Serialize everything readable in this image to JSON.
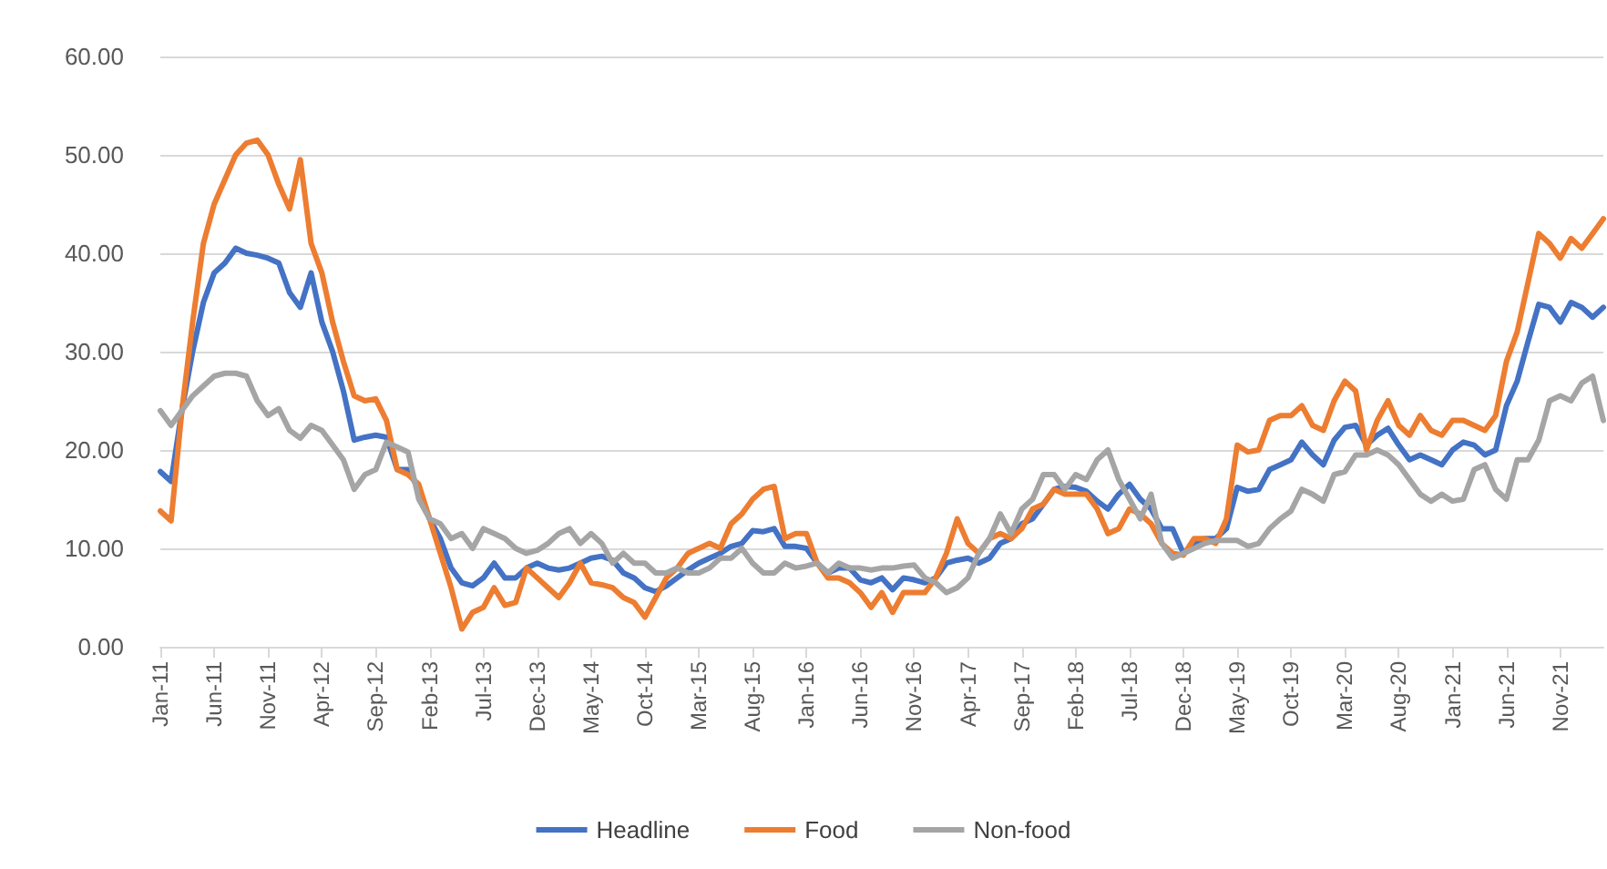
{
  "chart_data": {
    "type": "line",
    "marker": "none",
    "line_style": "solid",
    "grid": "y",
    "legend": "bottom",
    "ylim": [
      0,
      60
    ],
    "yticks": [
      {
        "value": 0,
        "label": "0.00"
      },
      {
        "value": 10,
        "label": "10.00"
      },
      {
        "value": 20,
        "label": "20.00"
      },
      {
        "value": 30,
        "label": "30.00"
      },
      {
        "value": 40,
        "label": "40.00"
      },
      {
        "value": 50,
        "label": "50.00"
      },
      {
        "value": 60,
        "label": "60.00"
      }
    ],
    "categories": [
      "Jan-11",
      null,
      null,
      null,
      null,
      "Jun-11",
      null,
      null,
      null,
      null,
      "Nov-11",
      null,
      null,
      null,
      null,
      "Apr-12",
      null,
      null,
      null,
      null,
      "Sep-12",
      null,
      null,
      null,
      null,
      "Feb-13",
      null,
      null,
      null,
      null,
      "Jul-13",
      null,
      null,
      null,
      null,
      "Dec-13",
      null,
      null,
      null,
      null,
      "May-14",
      null,
      null,
      null,
      null,
      "Oct-14",
      null,
      null,
      null,
      null,
      "Mar-15",
      null,
      null,
      null,
      null,
      "Aug-15",
      null,
      null,
      null,
      null,
      "Jan-16",
      null,
      null,
      null,
      null,
      "Jun-16",
      null,
      null,
      null,
      null,
      "Nov-16",
      null,
      null,
      null,
      null,
      "Apr-17",
      null,
      null,
      null,
      null,
      "Sep-17",
      null,
      null,
      null,
      null,
      "Feb-18",
      null,
      null,
      null,
      null,
      "Jul-18",
      null,
      null,
      null,
      null,
      "Dec-18",
      null,
      null,
      null,
      null,
      "May-19",
      null,
      null,
      null,
      null,
      "Oct-19",
      null,
      null,
      null,
      null,
      "Mar-20",
      null,
      null,
      null,
      null,
      "Aug-20",
      null,
      null,
      null,
      null,
      "Jan-21",
      null,
      null,
      null,
      null,
      "Jun-21",
      null,
      null,
      null,
      null,
      "Nov-21",
      null,
      null,
      null,
      null
    ],
    "series": [
      {
        "name": "Headline",
        "color": "#4472c4",
        "values": [
          17.8,
          16.8,
          24,
          30,
          35,
          38,
          39,
          40.5,
          40,
          39.8,
          39.5,
          39,
          36,
          34.5,
          38,
          33,
          30,
          26,
          21,
          21.3,
          21.5,
          21.3,
          18,
          18,
          16,
          13,
          11,
          8,
          6.5,
          6.2,
          7,
          8.5,
          7,
          7,
          8,
          8.5,
          8,
          7.8,
          8,
          8.5,
          9,
          9.2,
          8.8,
          7.5,
          7,
          6,
          5.6,
          6.2,
          7,
          7.8,
          8.5,
          9,
          9.5,
          10.2,
          10.5,
          11.8,
          11.7,
          12,
          10.2,
          10.2,
          10,
          8.5,
          7.5,
          8,
          8,
          6.8,
          6.5,
          7,
          5.8,
          7,
          6.8,
          6.5,
          7,
          8.5,
          8.8,
          9,
          8.5,
          9,
          10.5,
          11,
          12.5,
          13,
          14.5,
          16,
          16.3,
          16.2,
          15.8,
          14.8,
          14,
          15.5,
          16.5,
          15,
          14,
          12,
          12,
          9.5,
          10.5,
          11,
          11,
          12,
          16.2,
          15.8,
          16,
          18,
          18.5,
          19,
          20.8,
          19.5,
          18.5,
          21,
          22.3,
          22.5,
          20.5,
          21.5,
          22.2,
          20.5,
          19,
          19.5,
          19,
          18.5,
          20,
          20.8,
          20.5,
          19.5,
          20,
          24.5,
          27,
          31,
          34.8,
          34.5,
          33,
          35,
          34.5,
          33.5,
          34.5
        ]
      },
      {
        "name": "Food",
        "color": "#ed7d31",
        "values": [
          13.8,
          12.8,
          24,
          33,
          41,
          45,
          47.5,
          50,
          51.2,
          51.5,
          50,
          47,
          44.5,
          49.5,
          41,
          38,
          33,
          29,
          25.5,
          25,
          25.2,
          23,
          18,
          17.5,
          16.5,
          13,
          9.5,
          6,
          1.8,
          3.5,
          4,
          6,
          4.2,
          4.5,
          8,
          7,
          6,
          5,
          6.5,
          8.5,
          6.5,
          6.3,
          6,
          5,
          4.5,
          3,
          5,
          7,
          8,
          9.5,
          10,
          10.5,
          10,
          12.5,
          13.5,
          15,
          16,
          16.3,
          11,
          11.5,
          11.5,
          8.5,
          7,
          7,
          6.5,
          5.5,
          4,
          5.5,
          3.5,
          5.5,
          5.5,
          5.5,
          7,
          9.5,
          13,
          10.5,
          9.5,
          11,
          11.5,
          11,
          12,
          14,
          14.5,
          16,
          15.5,
          15.5,
          15.5,
          14,
          11.5,
          12,
          14,
          13.5,
          12.5,
          10.5,
          9.5,
          9.3,
          11,
          11,
          10.5,
          13,
          20.5,
          19.8,
          20,
          23,
          23.5,
          23.5,
          24.5,
          22.5,
          22,
          25,
          27,
          26,
          20,
          23,
          25,
          22.5,
          21.5,
          23.5,
          22,
          21.5,
          23,
          23,
          22.5,
          22,
          23.5,
          29,
          32,
          37,
          42,
          41,
          39.5,
          41.5,
          40.5,
          42,
          43.5
        ]
      },
      {
        "name": "Non-food",
        "color": "#a5a5a5",
        "values": [
          24,
          22.5,
          24,
          25.5,
          26.5,
          27.5,
          27.8,
          27.8,
          27.5,
          25,
          23.5,
          24.2,
          22,
          21.2,
          22.5,
          22,
          20.5,
          19,
          16,
          17.5,
          18,
          20.8,
          20.3,
          19.8,
          15,
          13,
          12.5,
          11,
          11.5,
          10,
          12,
          11.5,
          11,
          10,
          9.5,
          9.8,
          10.5,
          11.5,
          12,
          10.5,
          11.5,
          10.5,
          8.5,
          9.5,
          8.5,
          8.5,
          7.5,
          7.5,
          8,
          7.5,
          7.5,
          8,
          9,
          9,
          10,
          8.5,
          7.5,
          7.5,
          8.5,
          8,
          8.2,
          8.5,
          7.5,
          8.5,
          8,
          8,
          7.8,
          8,
          8,
          8.2,
          8.3,
          7,
          6.5,
          5.5,
          6,
          7,
          9.5,
          11,
          13.5,
          11.5,
          14,
          15,
          17.5,
          17.5,
          16,
          17.5,
          17,
          19,
          20,
          17,
          15,
          13,
          15.5,
          10.5,
          9,
          9.5,
          10,
          10.5,
          10.8,
          10.8,
          10.8,
          10.2,
          10.5,
          12,
          13,
          13.8,
          16,
          15.5,
          14.8,
          17.5,
          17.8,
          19.5,
          19.5,
          20,
          19.5,
          18.5,
          17,
          15.5,
          14.8,
          15.5,
          14.8,
          15,
          18,
          18.5,
          16,
          15,
          19,
          19,
          21,
          25,
          25.5,
          25,
          26.8,
          27.5,
          23
        ]
      }
    ]
  }
}
